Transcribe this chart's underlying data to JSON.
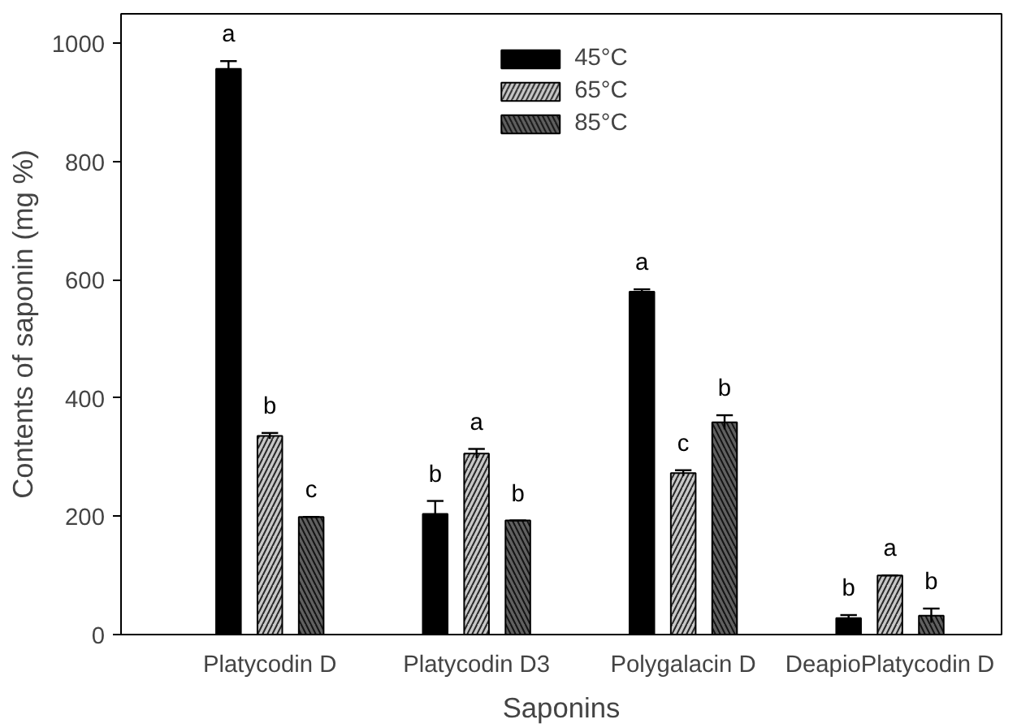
{
  "chart_data": {
    "type": "bar",
    "xlabel": "Saponins",
    "ylabel": "Contents of saponin (mg %)",
    "categories": [
      "Platycodin D",
      "Platycodin D3",
      "Polygalacin D",
      "DeapioPlatycodin D"
    ],
    "ylim": [
      0,
      1050
    ],
    "yticks": [
      0,
      200,
      400,
      600,
      800,
      1000
    ],
    "grid": false,
    "legend": "top",
    "series": [
      {
        "name": "45°C",
        "color": "#000000",
        "values": [
          957,
          204,
          580,
          28
        ],
        "errors": [
          13,
          22,
          4,
          5
        ],
        "value_labels": [
          "a",
          "b",
          "a",
          "b"
        ]
      },
      {
        "name": "65°C",
        "color": "#c8c8c8",
        "values": [
          336,
          306,
          273,
          100
        ],
        "errors": [
          5,
          8,
          5,
          0
        ],
        "value_labels": [
          "b",
          "a",
          "c",
          "a"
        ]
      },
      {
        "name": "85°C",
        "color": "#606060",
        "values": [
          199,
          193,
          359,
          32
        ],
        "errors": [
          0,
          0,
          12,
          12
        ],
        "value_labels": [
          "c",
          "b",
          "b",
          "b"
        ]
      }
    ]
  }
}
